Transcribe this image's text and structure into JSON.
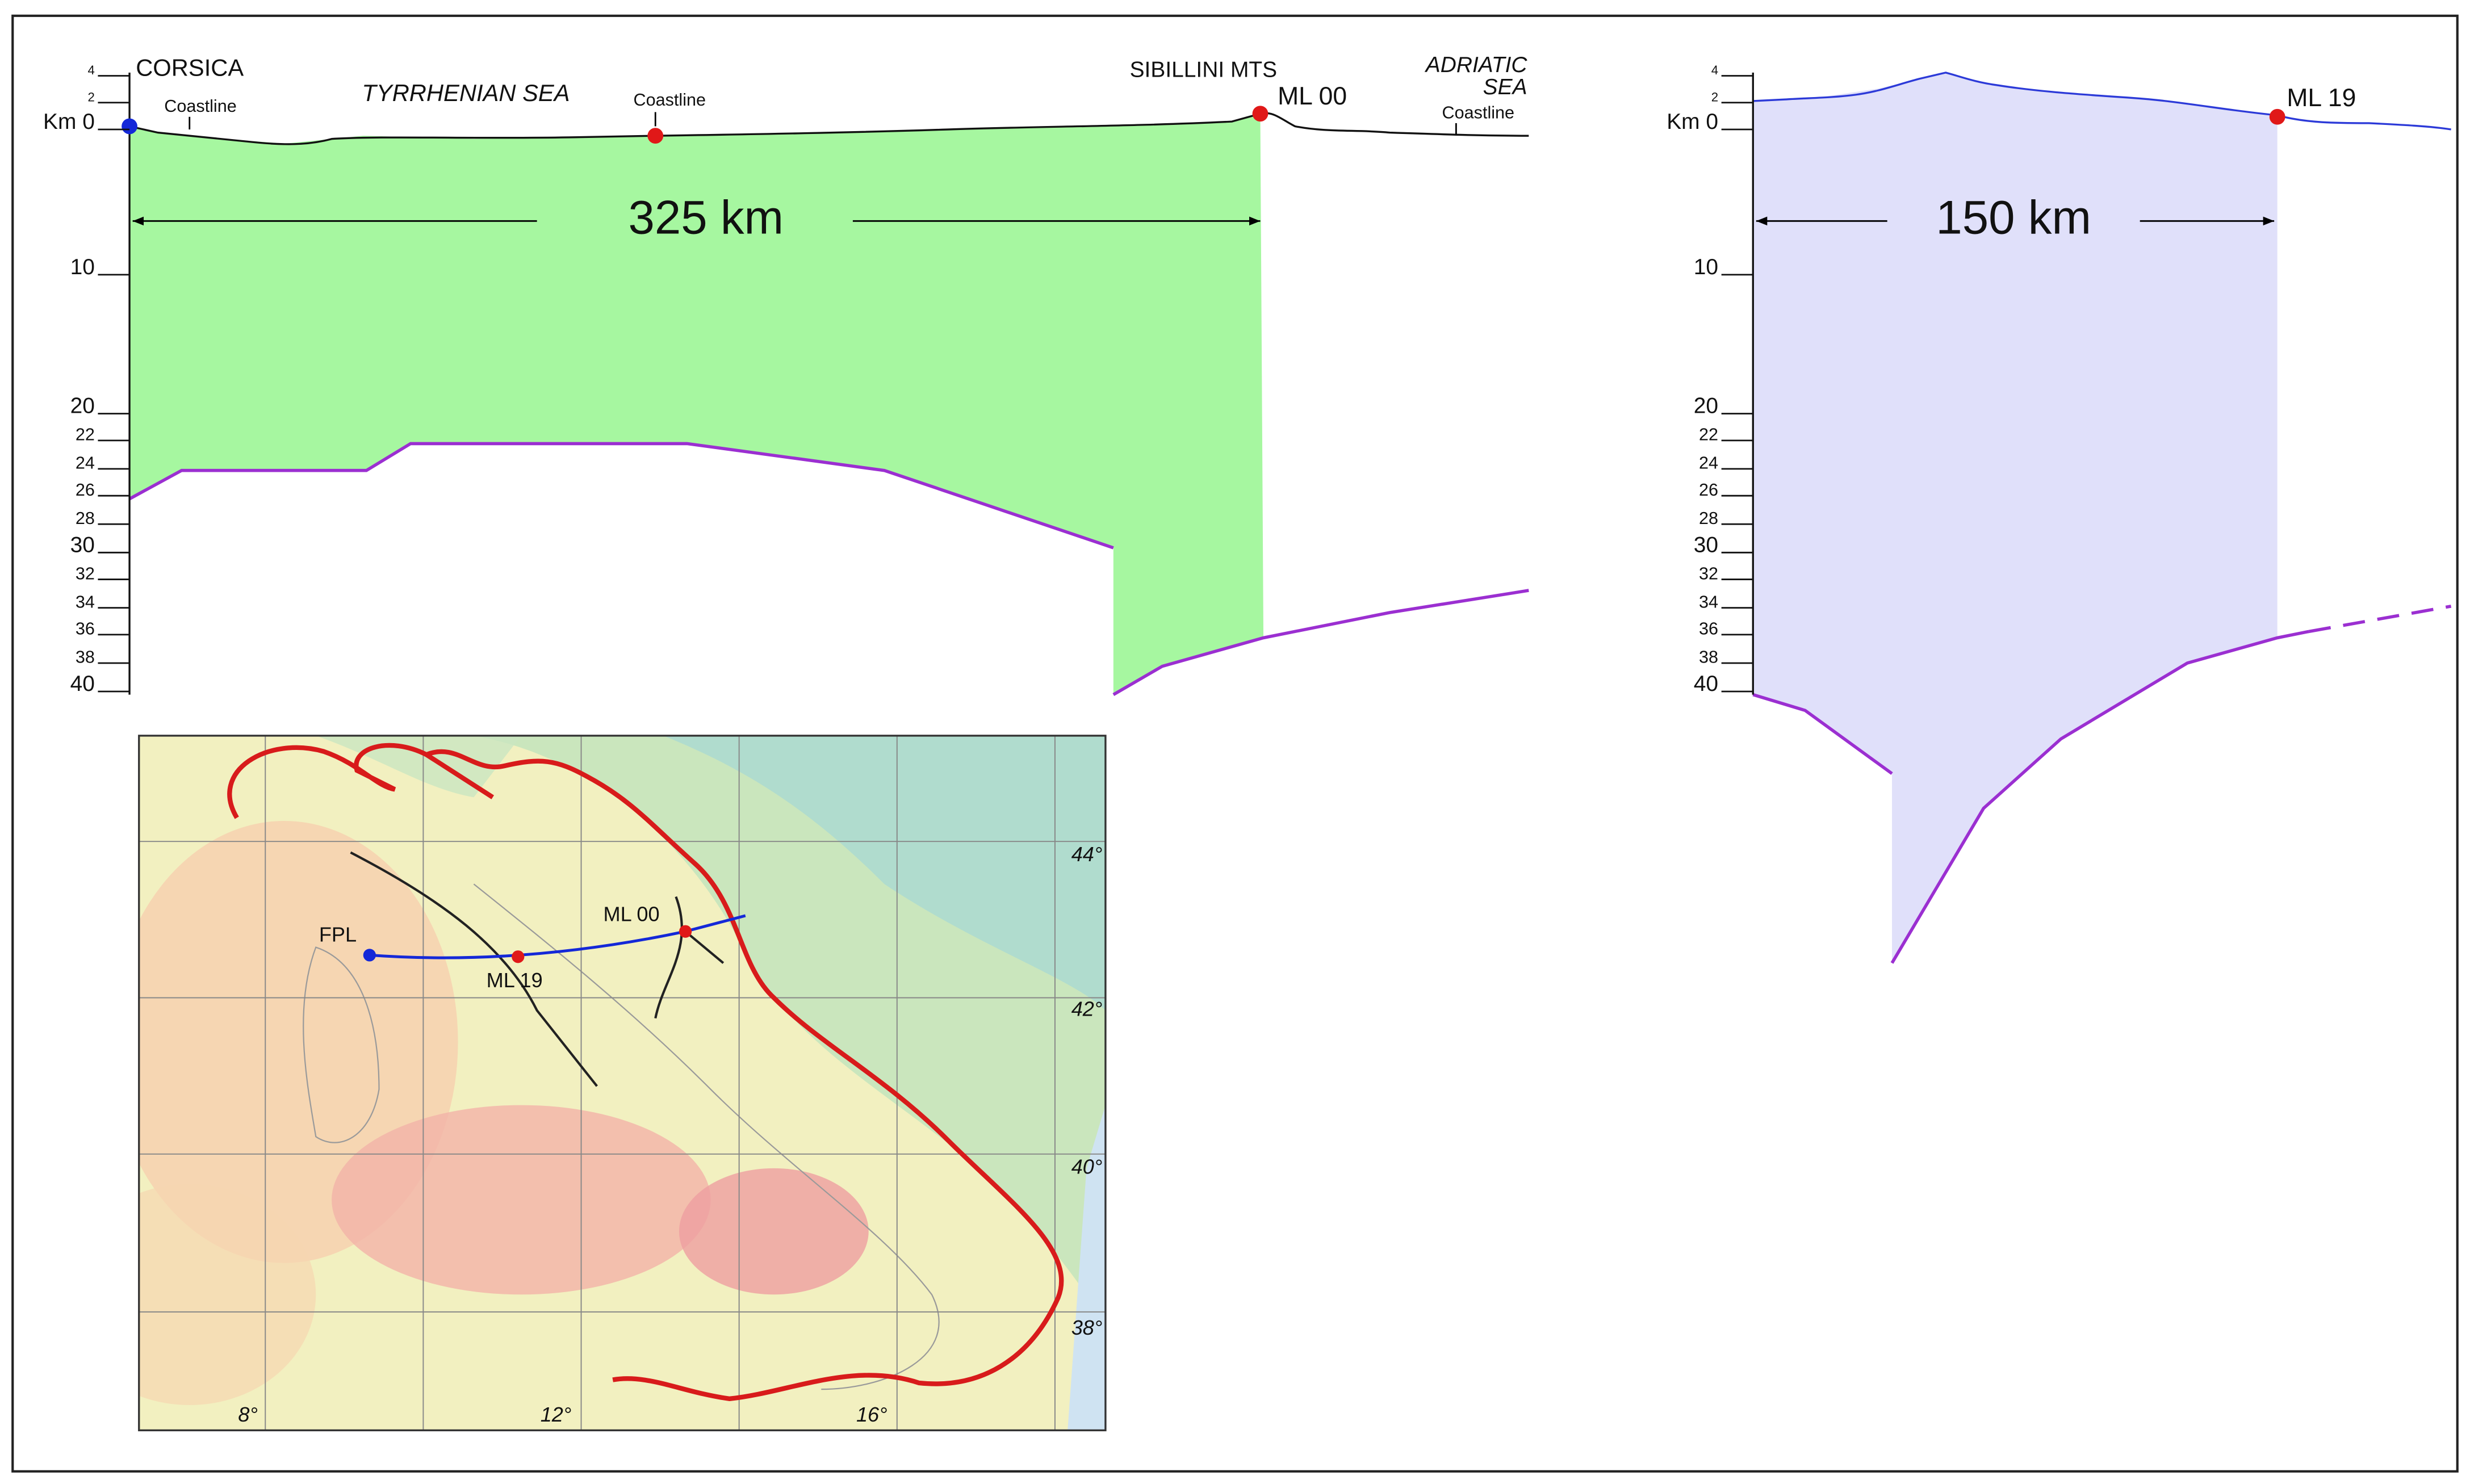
{
  "left_profile": {
    "corsica": "CORSICA",
    "coastline_west": "Coastline",
    "tyrrhenian_sea": "TYRRHENIAN SEA",
    "coastline_middle": "Coastline",
    "sibillini_mts": "SIBILLINI MTS",
    "station": "ML 00",
    "adriatic_sea": [
      "ADRIATIC",
      "SEA"
    ],
    "coastline_east": "Coastline",
    "distance": "325 km",
    "depth_axis": [
      "4",
      "2",
      "Km 0",
      "10",
      "20",
      "22",
      "24",
      "26",
      "28",
      "30",
      "32",
      "34",
      "36",
      "38",
      "40"
    ]
  },
  "right_profile": {
    "station": "ML 19",
    "distance": "150 km",
    "depth_axis": [
      "4",
      "2",
      "Km 0",
      "10",
      "20",
      "22",
      "24",
      "26",
      "28",
      "30",
      "32",
      "34",
      "36",
      "38",
      "40"
    ]
  },
  "map": {
    "fpl": "FPL",
    "ml00": "ML 00",
    "ml19": "ML 19",
    "latitudes": [
      "44°",
      "42°",
      "40°",
      "38°"
    ],
    "longitudes": [
      "8°",
      "12°",
      "16°"
    ]
  }
}
